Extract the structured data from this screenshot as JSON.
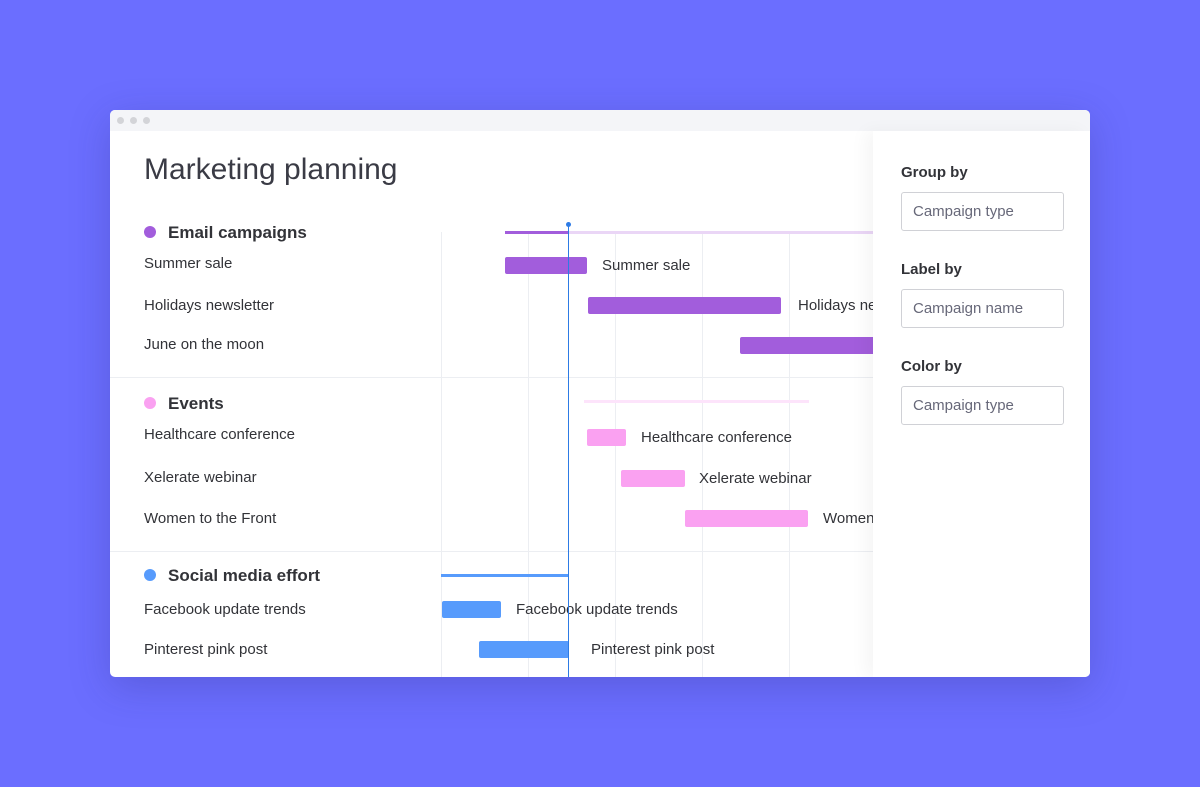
{
  "page_title": "Marketing planning",
  "colors": {
    "email": "#a25ddc",
    "events": "#faa1f1",
    "social": "#579bfc",
    "today": "#2d7be5",
    "background": "#6b6eff"
  },
  "groups": [
    {
      "name": "Email campaigns",
      "items": [
        "Summer sale",
        "Holidays newsletter",
        "June on the moon"
      ]
    },
    {
      "name": "Events",
      "items": [
        "Healthcare conference",
        "Xelerate webinar",
        "Women to the Front"
      ]
    },
    {
      "name": "Social media effort",
      "items": [
        "Facebook update trends",
        "Pinterest pink post"
      ]
    }
  ],
  "bar_labels": {
    "summer_sale": "Summer sale",
    "holidays_newsletter": "Holidays newsletter",
    "healthcare_conference": "Healthcare conference",
    "xelerate_webinar": "Xelerate webinar",
    "women_to_the_front": "Women to the Front",
    "facebook_update_trends": "Facebook update trends",
    "pinterest_pink_post": "Pinterest pink post"
  },
  "settings": {
    "group_by": {
      "label": "Group by",
      "value": "Campaign type"
    },
    "label_by": {
      "label": "Label by",
      "value": "Campaign name"
    },
    "color_by": {
      "label": "Color by",
      "value": "Campaign type"
    }
  }
}
